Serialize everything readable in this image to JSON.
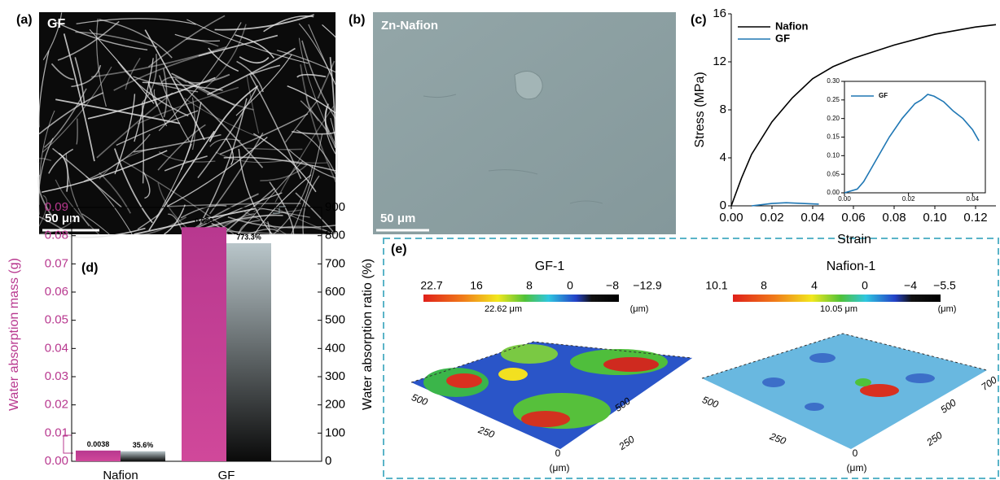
{
  "panel_a": {
    "label": "(a)",
    "title": "GF",
    "scale_bar": "50 μm"
  },
  "panel_b": {
    "label": "(b)",
    "title": "Zn-Nafion",
    "scale_bar": "50 μm"
  },
  "panel_e": {
    "label": "(e)",
    "maps": [
      {
        "title": "GF-1",
        "colorbar_labels": [
          "22.7",
          "16",
          "8",
          "0",
          "−8",
          "−12.9"
        ],
        "peak": "22.62 μm",
        "unit": "(μm)",
        "axis_labels": [
          "500",
          "250",
          "0",
          "(μm)",
          "250",
          "500"
        ]
      },
      {
        "title": "Nafion-1",
        "colorbar_labels": [
          "10.1",
          "8",
          "4",
          "0",
          "−4",
          "−5.5"
        ],
        "peak": "10.05 μm",
        "unit": "(μm)",
        "axis_labels": [
          "500",
          "250",
          "0",
          "(μm)",
          "250",
          "500",
          "700"
        ]
      }
    ]
  },
  "chart_data": [
    {
      "type": "line",
      "panel_label": "(c)",
      "x_label": "Strain",
      "y_label": "Stress (MPa)",
      "xlim": [
        0,
        0.13
      ],
      "ylim": [
        0,
        16
      ],
      "xticks": [
        {
          "value": 0,
          "label": "0.00"
        },
        {
          "value": 0.02,
          "label": "0.02"
        },
        {
          "value": 0.04,
          "label": "0.04"
        },
        {
          "value": 0.06,
          "label": "0.06"
        },
        {
          "value": 0.08,
          "label": "0.08"
        },
        {
          "value": 0.1,
          "label": "0.10"
        },
        {
          "value": 0.12,
          "label": "0.12"
        }
      ],
      "yticks": [
        0,
        4,
        8,
        12,
        16
      ],
      "legend": "upper left",
      "series": [
        {
          "name": "Nafion",
          "color": "#000000",
          "x": [
            0,
            0.005,
            0.01,
            0.02,
            0.03,
            0.04,
            0.05,
            0.06,
            0.08,
            0.1,
            0.12,
            0.13
          ],
          "values": [
            0,
            2.3,
            4.3,
            7.0,
            9.0,
            10.6,
            11.6,
            12.3,
            13.4,
            14.3,
            14.9,
            15.1
          ]
        },
        {
          "name": "GF",
          "color": "#1f77b4",
          "x": [
            0.01,
            0.015,
            0.02,
            0.027,
            0.035,
            0.043
          ],
          "values": [
            0,
            0.1,
            0.2,
            0.26,
            0.2,
            0.14
          ]
        }
      ]
    },
    {
      "type": "line",
      "xlim": [
        0,
        0.044
      ],
      "ylim": [
        0,
        0.3
      ],
      "xticks": [
        {
          "value": 0,
          "label": "0.00"
        },
        {
          "value": 0.02,
          "label": "0.02"
        },
        {
          "value": 0.04,
          "label": "0.04"
        }
      ],
      "yticks": [
        {
          "value": 0,
          "label": "0.00"
        },
        {
          "value": 0.05,
          "label": "0.05"
        },
        {
          "value": 0.1,
          "label": "0.10"
        },
        {
          "value": 0.15,
          "label": "0.15"
        },
        {
          "value": 0.2,
          "label": "0.20"
        },
        {
          "value": 0.25,
          "label": "0.25"
        },
        {
          "value": 0.3,
          "label": "0.30"
        }
      ],
      "legend": "upper left",
      "series": [
        {
          "name": "GF",
          "color": "#1f77b4",
          "x": [
            0,
            0.004,
            0.006,
            0.008,
            0.01,
            0.014,
            0.018,
            0.022,
            0.024,
            0.026,
            0.028,
            0.031,
            0.034,
            0.037,
            0.04,
            0.042
          ],
          "values": [
            0,
            0.01,
            0.03,
            0.06,
            0.09,
            0.15,
            0.2,
            0.24,
            0.25,
            0.265,
            0.26,
            0.245,
            0.22,
            0.2,
            0.17,
            0.14
          ]
        }
      ]
    },
    {
      "type": "bar",
      "panel_label": "(d)",
      "categories": [
        "Nafion",
        "GF"
      ],
      "y_label": "Water absorption mass (g)",
      "y2_label": "Water absorption ratio (%)",
      "ylim": [
        0,
        0.09
      ],
      "yticks": [
        {
          "value": 0,
          "label": "0.00"
        },
        {
          "value": 0.01,
          "label": "0.01"
        },
        {
          "value": 0.02,
          "label": "0.02"
        },
        {
          "value": 0.03,
          "label": "0.03"
        },
        {
          "value": 0.04,
          "label": "0.04"
        },
        {
          "value": 0.05,
          "label": "0.05"
        },
        {
          "value": 0.06,
          "label": "0.06"
        },
        {
          "value": 0.07,
          "label": "0.07"
        },
        {
          "value": 0.08,
          "label": "0.08"
        },
        {
          "value": 0.09,
          "label": "0.09"
        }
      ],
      "y2lim": [
        0,
        900
      ],
      "y2ticks": [
        0,
        100,
        200,
        300,
        400,
        500,
        600,
        700,
        800,
        900
      ],
      "series": [
        {
          "name": "Water absorption mass",
          "color": "#b8388f",
          "values": [
            0.0038,
            0.083
          ],
          "value_labels": [
            "0.0038",
            "0.083"
          ]
        },
        {
          "name": "Water absorption ratio",
          "color": "#b9c6ca",
          "axis": "y2",
          "values": [
            35.6,
            773.3
          ],
          "value_labels": [
            "35.6%",
            "773.3%"
          ]
        }
      ]
    }
  ]
}
